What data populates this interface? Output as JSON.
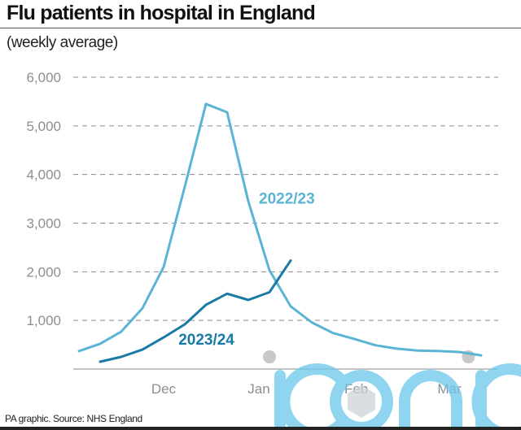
{
  "title": "Flu patients in hospital in England",
  "subtitle": "(weekly average)",
  "footer": "PA graphic. Source: NHS England",
  "watermark": "iconic",
  "colors": {
    "series_2022_23": "#5ab4d4",
    "series_2023_24": "#1a7aa6",
    "grid": "#8a8a8a",
    "tick_text": "#8a8f94",
    "watermark": "#6cc8ec",
    "marker_dots": "#c8c8c8"
  },
  "chart_data": {
    "type": "line",
    "title": "Flu patients in hospital in England",
    "subtitle": "(weekly average)",
    "xlabel": "",
    "ylabel": "",
    "ylim": [
      0,
      6000
    ],
    "yticks": [
      1000,
      2000,
      3000,
      4000,
      5000,
      6000
    ],
    "ytick_labels": [
      "1,000",
      "2,000",
      "3,000",
      "4,000",
      "5,000",
      "6,000"
    ],
    "grid": true,
    "x_week_index_range": [
      0,
      19
    ],
    "month_ticks": [
      {
        "label": "Dec",
        "week": 4
      },
      {
        "label": "Jan",
        "week": 8.5
      },
      {
        "label": "Feb",
        "week": 13.1
      },
      {
        "label": "Mar",
        "week": 17.5
      }
    ],
    "series": [
      {
        "name": "2022/23",
        "label_anchor_week": 8.5,
        "label_anchor_value": 3400,
        "weeks": [
          0,
          1,
          2,
          3,
          4,
          5,
          6,
          7,
          8,
          9,
          10,
          11,
          12,
          13,
          14,
          15,
          16,
          17,
          18,
          19
        ],
        "values": [
          370,
          520,
          770,
          1250,
          2100,
          3750,
          5450,
          5280,
          3450,
          2030,
          1290,
          960,
          740,
          620,
          490,
          420,
          380,
          370,
          350,
          280
        ]
      },
      {
        "name": "2023/24",
        "label_anchor_week": 4.7,
        "label_anchor_value": 500,
        "weeks": [
          1,
          2,
          3,
          4,
          5,
          6,
          7,
          8,
          9,
          10
        ],
        "values": [
          150,
          250,
          400,
          650,
          920,
          1320,
          1550,
          1420,
          1580,
          2230
        ]
      }
    ],
    "markers": [
      {
        "week": 9,
        "value": 250
      },
      {
        "week": 18.4,
        "value": 250
      }
    ]
  }
}
